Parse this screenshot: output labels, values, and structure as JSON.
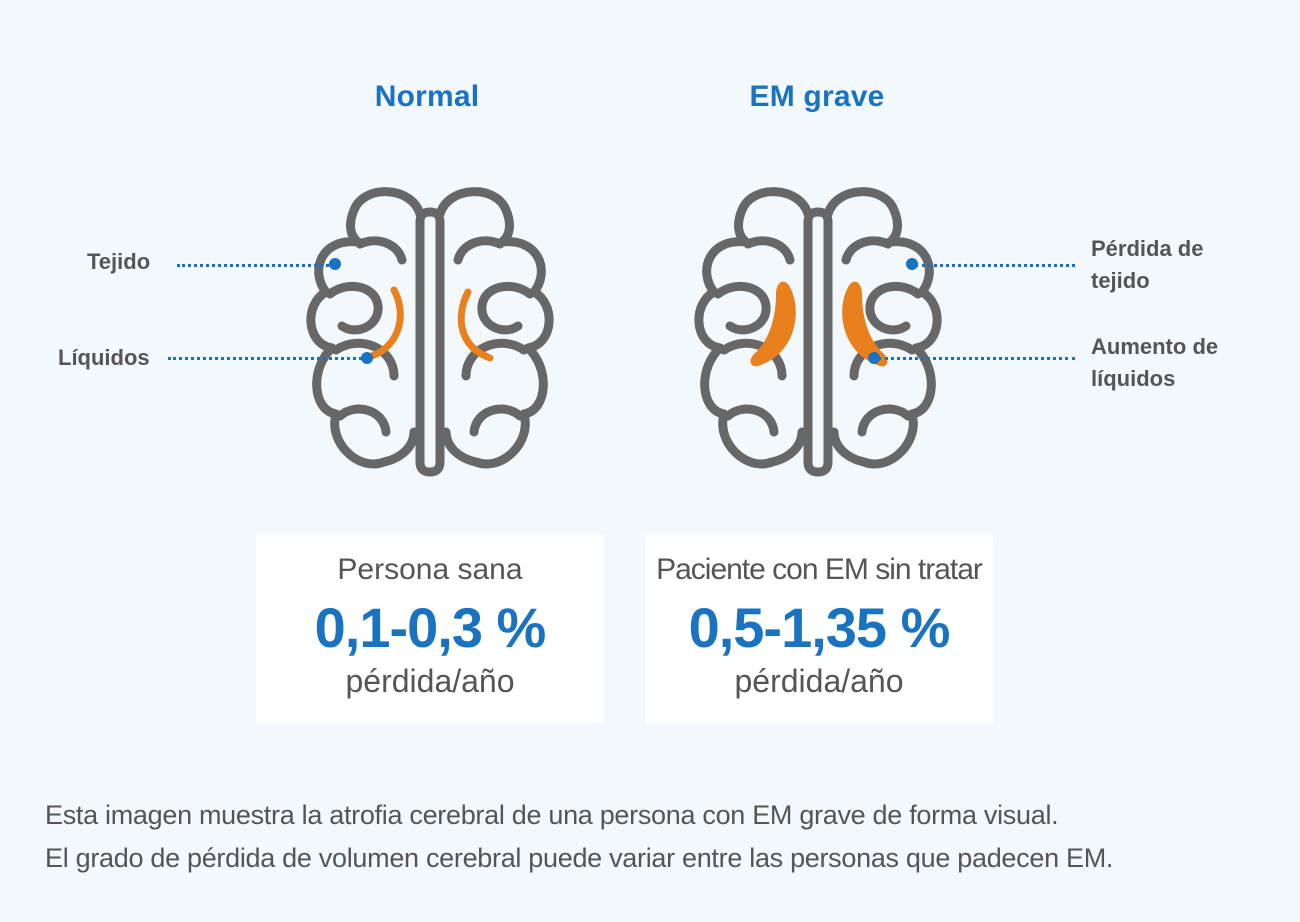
{
  "headings": {
    "normal": "Normal",
    "severe": "EM grave"
  },
  "labels": {
    "tissue": "Tejido",
    "fluids": "Líquidos",
    "tissue_loss_line1": "Pérdida de",
    "tissue_loss_line2": "tejido",
    "fluid_increase_line1": "Aumento de",
    "fluid_increase_line2": "líquidos"
  },
  "cards": {
    "healthy": {
      "title": "Persona sana",
      "value": "0,1-0,3 %",
      "unit": "pérdida/año"
    },
    "untreated": {
      "title": "Paciente con EM sin tratar",
      "value": "0,5-1,35 %",
      "unit": "pérdida/año"
    }
  },
  "caption": {
    "line1": "Esta imagen muestra la atrofia cerebral de una persona con EM grave de forma visual.",
    "line2": "El grado de pérdida de volumen cerebral puede variar entre las personas que padecen EM."
  },
  "colors": {
    "accent_blue": "#1a73c1",
    "brain_outline": "#676767",
    "ventricle_orange": "#e8801d",
    "text_gray": "#555555",
    "background": "#f3f8fc"
  }
}
